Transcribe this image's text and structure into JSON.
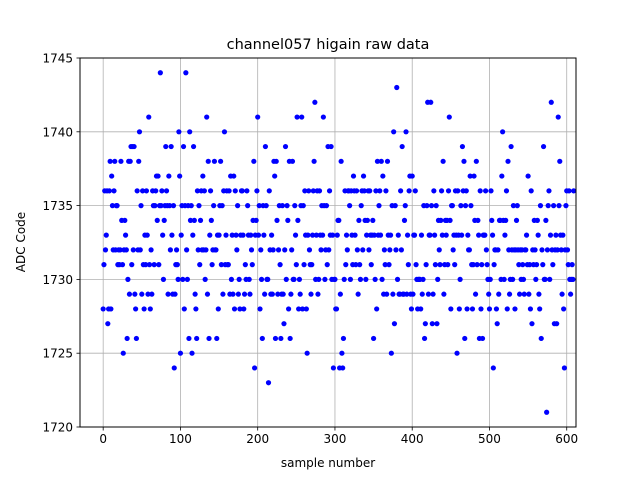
{
  "colors": {
    "marker": "#0000ff",
    "grid": "#b0b0b0",
    "axes": "#000000",
    "background": "#ffffff"
  },
  "chart_data": {
    "type": "scatter",
    "title": "channel057 higain raw data",
    "xlabel": "sample number",
    "ylabel": "ADC Code",
    "xlim": [
      -30,
      612
    ],
    "ylim": [
      1720,
      1745
    ],
    "xticks": [
      0,
      100,
      200,
      300,
      400,
      500,
      600
    ],
    "yticks": [
      1720,
      1725,
      1730,
      1735,
      1740,
      1745
    ],
    "grid": true,
    "marker": "dot",
    "series": [
      {
        "values": [
          1728,
          1731,
          1736,
          1732,
          1733,
          1736,
          1727,
          1728,
          1736,
          1738,
          1728,
          1737,
          1735,
          1732,
          1736,
          1738,
          1732,
          1735,
          1735,
          1731,
          1732,
          1731,
          1732,
          1738,
          1734,
          1731,
          1725,
          1732,
          1734,
          1733,
          1732,
          1726,
          1730,
          1738,
          1729,
          1738,
          1739,
          1731,
          1739,
          1732,
          1739,
          1729,
          1728,
          1726,
          1736,
          1732,
          1738,
          1740,
          1732,
          1735,
          1729,
          1736,
          1731,
          1728,
          1733,
          1731,
          1736,
          1733,
          1729,
          1741,
          1731,
          1728,
          1732,
          1729,
          1736,
          1735,
          1731,
          1735,
          1736,
          1737,
          1734,
          1737,
          1731,
          1735,
          1744,
          1735,
          1736,
          1733,
          1730,
          1734,
          1735,
          1739,
          1736,
          1735,
          1729,
          1737,
          1735,
          1732,
          1739,
          1733,
          1729,
          1735,
          1724,
          1729,
          1731,
          1732,
          1731,
          1730,
          1740,
          1737,
          1725,
          1733,
          1735,
          1730,
          1739,
          1728,
          1735,
          1744,
          1732,
          1730,
          1735,
          1726,
          1740,
          1734,
          1735,
          1725,
          1733,
          1739,
          1734,
          1729,
          1728,
          1726,
          1736,
          1732,
          1735,
          1731,
          1734,
          1736,
          1732,
          1737,
          1732,
          1736,
          1730,
          1732,
          1741,
          1729,
          1738,
          1726,
          1733,
          1736,
          1734,
          1731,
          1732,
          1735,
          1738,
          1732,
          1732,
          1726,
          1733,
          1728,
          1733,
          1735,
          1738,
          1731,
          1735,
          1729,
          1736,
          1740,
          1731,
          1733,
          1736,
          1731,
          1731,
          1736,
          1729,
          1737,
          1730,
          1733,
          1729,
          1737,
          1728,
          1736,
          1733,
          1732,
          1735,
          1729,
          1730,
          1728,
          1733,
          1736,
          1736,
          1733,
          1728,
          1729,
          1731,
          1730,
          1736,
          1735,
          1733,
          1730,
          1729,
          1733,
          1732,
          1731,
          1734,
          1738,
          1724,
          1733,
          1734,
          1736,
          1741,
          1733,
          1735,
          1728,
          1732,
          1730,
          1726,
          1735,
          1733,
          1729,
          1739,
          1735,
          1730,
          1730,
          1723,
          1736,
          1732,
          1729,
          1733,
          1729,
          1732,
          1738,
          1737,
          1726,
          1738,
          1734,
          1729,
          1732,
          1735,
          1731,
          1726,
          1729,
          1735,
          1729,
          1727,
          1732,
          1739,
          1730,
          1735,
          1734,
          1728,
          1738,
          1726,
          1729,
          1732,
          1738,
          1730,
          1730,
          1735,
          1733,
          1731,
          1741,
          1734,
          1728,
          1730,
          1729,
          1735,
          1741,
          1728,
          1735,
          1731,
          1736,
          1733,
          1728,
          1725,
          1733,
          1736,
          1732,
          1731,
          1729,
          1731,
          1733,
          1736,
          1738,
          1742,
          1730,
          1733,
          1736,
          1729,
          1730,
          1736,
          1733,
          1732,
          1735,
          1733,
          1741,
          1735,
          1730,
          1732,
          1735,
          1731,
          1739,
          1732,
          1736,
          1733,
          1739,
          1730,
          1733,
          1724,
          1730,
          1730,
          1728,
          1728,
          1733,
          1734,
          1734,
          1724,
          1729,
          1738,
          1725,
          1724,
          1726,
          1730,
          1736,
          1731,
          1733,
          1732,
          1736,
          1736,
          1735,
          1730,
          1736,
          1733,
          1731,
          1737,
          1736,
          1733,
          1731,
          1736,
          1732,
          1729,
          1734,
          1731,
          1730,
          1735,
          1736,
          1732,
          1737,
          1736,
          1734,
          1730,
          1733,
          1734,
          1736,
          1732,
          1736,
          1733,
          1731,
          1733,
          1734,
          1726,
          1733,
          1730,
          1736,
          1728,
          1738,
          1733,
          1735,
          1736,
          1733,
          1738,
          1730,
          1737,
          1729,
          1732,
          1731,
          1736,
          1729,
          1738,
          1733,
          1731,
          1732,
          1733,
          1725,
          1735,
          1729,
          1740,
          1727,
          1735,
          1732,
          1743,
          1730,
          1733,
          1729,
          1729,
          1736,
          1732,
          1739,
          1729,
          1729,
          1734,
          1735,
          1740,
          1729,
          1733,
          1731,
          1736,
          1737,
          1729,
          1728,
          1737,
          1729,
          1733,
          1733,
          1736,
          1731,
          1730,
          1728,
          1730,
          1730,
          1730,
          1728,
          1733,
          1729,
          1730,
          1735,
          1726,
          1727,
          1731,
          1735,
          1742,
          1729,
          1733,
          1733,
          1742,
          1735,
          1727,
          1729,
          1736,
          1733,
          1731,
          1735,
          1727,
          1730,
          1734,
          1732,
          1731,
          1734,
          1736,
          1733,
          1738,
          1729,
          1731,
          1734,
          1733,
          1734,
          1731,
          1736,
          1741,
          1734,
          1728,
          1735,
          1735,
          1732,
          1733,
          1731,
          1736,
          1733,
          1725,
          1736,
          1733,
          1728,
          1730,
          1735,
          1733,
          1739,
          1736,
          1738,
          1726,
          1735,
          1736,
          1728,
          1733,
          1732,
          1732,
          1737,
          1735,
          1731,
          1728,
          1731,
          1737,
          1734,
          1729,
          1738,
          1731,
          1734,
          1733,
          1726,
          1736,
          1728,
          1731,
          1726,
          1733,
          1733,
          1733,
          1736,
          1732,
          1731,
          1730,
          1729,
          1728,
          1730,
          1736,
          1734,
          1733,
          1724,
          1731,
          1732,
          1732,
          1728,
          1727,
          1732,
          1729,
          1734,
          1734,
          1730,
          1737,
          1740,
          1734,
          1730,
          1733,
          1734,
          1736,
          1728,
          1738,
          1732,
          1729,
          1730,
          1739,
          1732,
          1730,
          1735,
          1732,
          1728,
          1732,
          1734,
          1735,
          1732,
          1731,
          1729,
          1732,
          1730,
          1732,
          1731,
          1730,
          1729,
          1732,
          1732,
          1733,
          1731,
          1737,
          1729,
          1731,
          1728,
          1736,
          1727,
          1732,
          1731,
          1734,
          1732,
          1730,
          1731,
          1734,
          1733,
          1729,
          1728,
          1735,
          1726,
          1732,
          1731,
          1739,
          1730,
          1730,
          1734,
          1721,
          1732,
          1735,
          1736,
          1730,
          1733,
          1742,
          1732,
          1731,
          1735,
          1727,
          1732,
          1733,
          1727,
          1732,
          1741,
          1735,
          1738,
          1733,
          1732,
          1729,
          1733,
          1728,
          1724,
          1732,
          1735,
          1736,
          1732,
          1731,
          1736,
          1730,
          1729,
          1730,
          1731,
          1730,
          1736
        ]
      }
    ]
  }
}
